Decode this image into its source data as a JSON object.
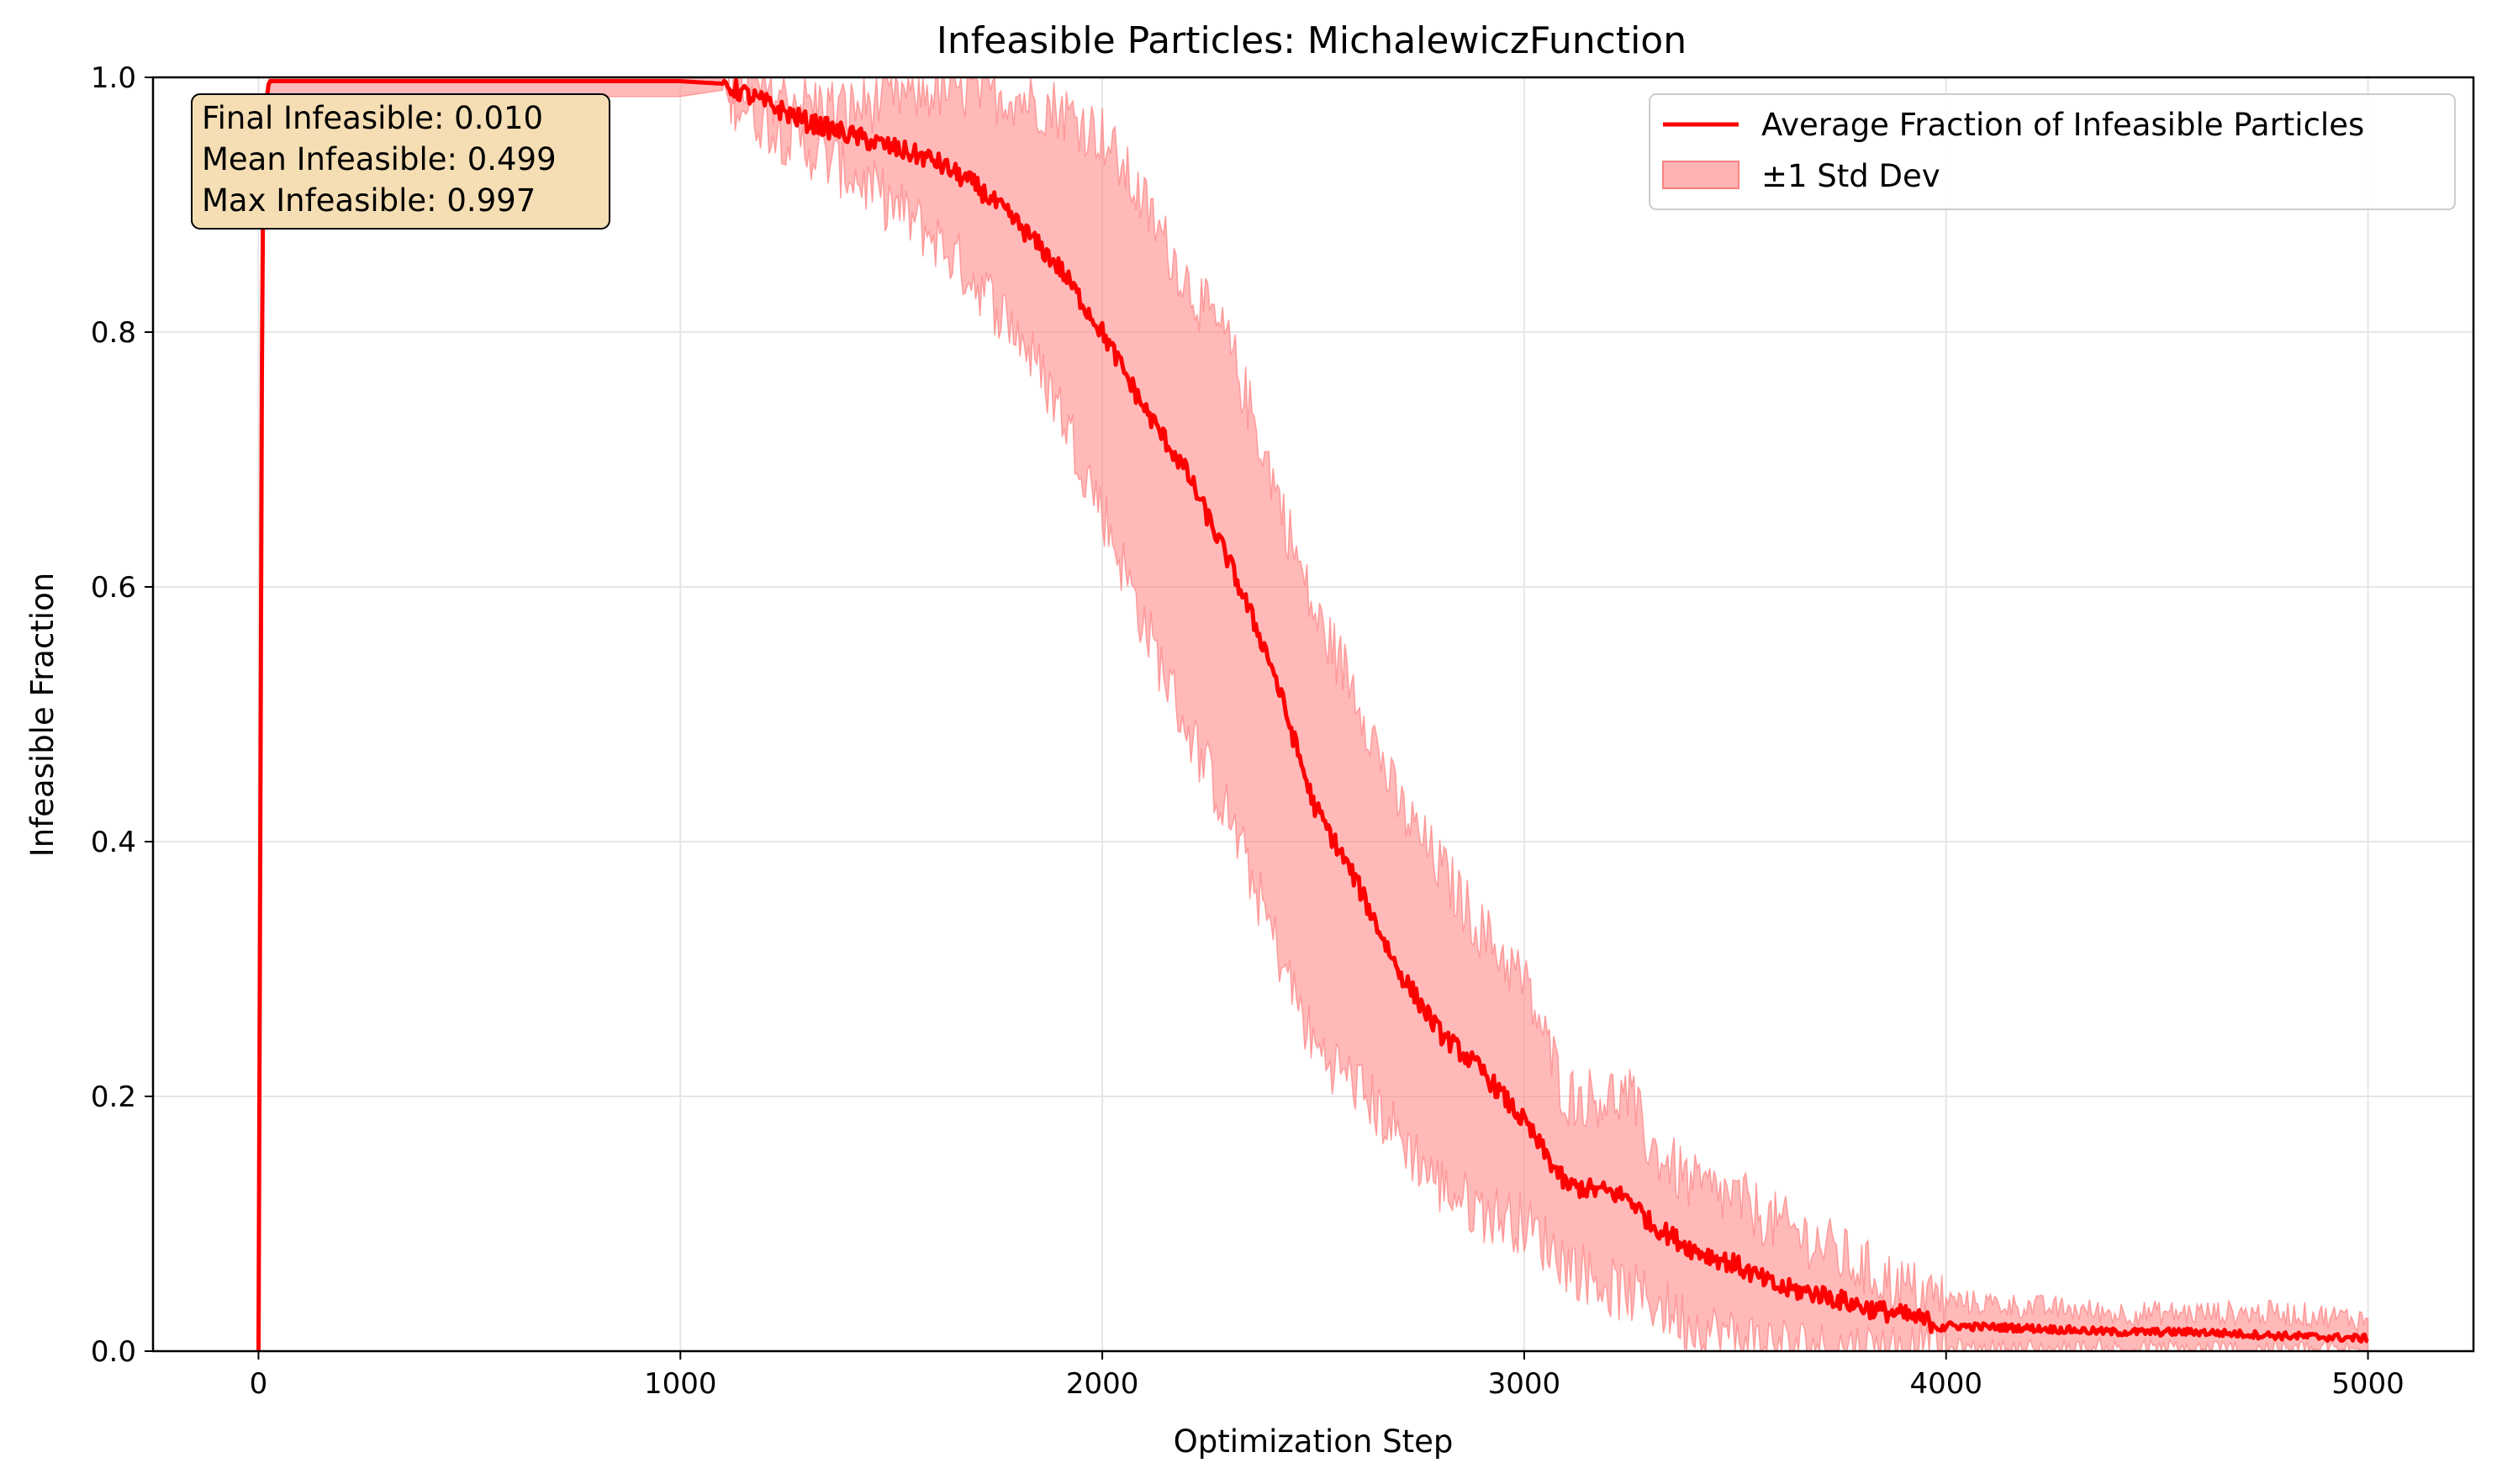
{
  "chart_data": {
    "type": "line",
    "title": "Infeasible Particles: MichalewiczFunction",
    "xlabel": "Optimization Step",
    "ylabel": "Infeasible Fraction",
    "xlim": [
      -250,
      5250
    ],
    "ylim": [
      0,
      1
    ],
    "xticks": [
      0,
      1000,
      2000,
      3000,
      4000,
      5000
    ],
    "xtick_labels": [
      "0",
      "1000",
      "2000",
      "3000",
      "4000",
      "5000"
    ],
    "yticks": [
      0,
      0.2,
      0.4,
      0.6,
      0.8,
      1.0
    ],
    "ytick_labels": [
      "0.0",
      "0.2",
      "0.4",
      "0.6",
      "0.8",
      "1.0"
    ],
    "grid": true,
    "legend_position": "top-right",
    "series": [
      {
        "name": "Average Fraction of Infeasible Particles",
        "color": "#ff0000",
        "x": [
          0,
          10,
          25,
          100,
          500,
          1000,
          1100,
          1200,
          1300,
          1400,
          1500,
          1600,
          1700,
          1800,
          1900,
          2000,
          2100,
          2200,
          2300,
          2400,
          2500,
          2600,
          2700,
          2800,
          2900,
          3000,
          3100,
          3200,
          3250,
          3300,
          3400,
          3500,
          3600,
          3700,
          3800,
          3900,
          4000,
          4200,
          4400,
          4600,
          4800,
          5000
        ],
        "y": [
          0.0,
          0.96,
          0.997,
          0.997,
          0.997,
          0.997,
          0.995,
          0.98,
          0.965,
          0.955,
          0.945,
          0.935,
          0.915,
          0.885,
          0.85,
          0.8,
          0.74,
          0.69,
          0.62,
          0.54,
          0.43,
          0.37,
          0.3,
          0.25,
          0.22,
          0.18,
          0.13,
          0.125,
          0.12,
          0.1,
          0.08,
          0.068,
          0.05,
          0.045,
          0.035,
          0.028,
          0.02,
          0.018,
          0.015,
          0.015,
          0.012,
          0.01
        ]
      },
      {
        "name": "±1 Std Dev",
        "type": "band",
        "color": "#ff8080",
        "x": [
          0,
          10,
          25,
          100,
          500,
          1000,
          1100,
          1200,
          1300,
          1400,
          1500,
          1600,
          1700,
          1800,
          1900,
          2000,
          2100,
          2200,
          2300,
          2400,
          2500,
          2600,
          2700,
          2800,
          2900,
          3000,
          3100,
          3200,
          3250,
          3300,
          3400,
          3500,
          3600,
          3700,
          3800,
          3900,
          4000,
          4200,
          4400,
          4600,
          4800,
          5000
        ],
        "lower": [
          0.0,
          0.95,
          0.985,
          0.985,
          0.985,
          0.985,
          0.99,
          0.965,
          0.945,
          0.925,
          0.9,
          0.875,
          0.84,
          0.8,
          0.74,
          0.66,
          0.57,
          0.49,
          0.42,
          0.33,
          0.24,
          0.21,
          0.17,
          0.13,
          0.11,
          0.1,
          0.07,
          0.05,
          0.045,
          0.04,
          0.02,
          0.01,
          0.005,
          0.0,
          0.0,
          0.0,
          0.0,
          0.0,
          0.0,
          0.0,
          0.0,
          0.0
        ],
        "upper": [
          0.0,
          0.97,
          1.0,
          1.0,
          1.0,
          1.0,
          1.0,
          0.99,
          0.98,
          0.975,
          0.985,
          0.99,
          0.99,
          0.985,
          0.975,
          0.955,
          0.9,
          0.84,
          0.79,
          0.69,
          0.58,
          0.52,
          0.43,
          0.38,
          0.33,
          0.29,
          0.2,
          0.2,
          0.2,
          0.16,
          0.13,
          0.12,
          0.1,
          0.085,
          0.065,
          0.05,
          0.04,
          0.035,
          0.03,
          0.03,
          0.03,
          0.025
        ]
      }
    ],
    "stats_box": {
      "lines": [
        "Final Infeasible: 0.010",
        "Mean Infeasible: 0.499",
        "Max Infeasible: 0.997"
      ],
      "background": "#f5deb3"
    }
  }
}
